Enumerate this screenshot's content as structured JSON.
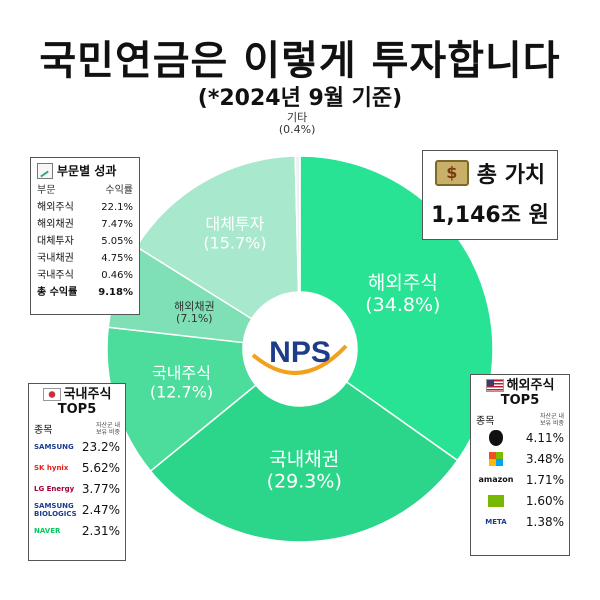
{
  "title": "국민연금은 이렇게 투자합니다",
  "subtitle": "(*2024년 9월 기준)",
  "center_logo": "NPS",
  "colors": {
    "foreign_stock": "#27e393",
    "domestic_bond": "#2bd68a",
    "domestic_stock": "#4cdc9c",
    "foreign_bond": "#7fdfb5",
    "alternative": "#a8e8cc",
    "other": "#f1f1f1",
    "nps_blue": "#1f3c8c",
    "nps_orange": "#f2a11c"
  },
  "chart_data": {
    "type": "pie",
    "donut": true,
    "slices": [
      {
        "name": "해외주식",
        "value": 34.8,
        "label": "(34.8%)"
      },
      {
        "name": "국내채권",
        "value": 29.3,
        "label": "(29.3%)"
      },
      {
        "name": "국내주식",
        "value": 12.7,
        "label": "(12.7%)"
      },
      {
        "name": "해외채권",
        "value": 7.1,
        "label": "(7.1%)"
      },
      {
        "name": "대체투자",
        "value": 15.7,
        "label": "(15.7%)"
      },
      {
        "name": "기타",
        "value": 0.4,
        "label": "(0.4%)"
      }
    ]
  },
  "performance_box": {
    "title": "부문별 성과",
    "col_sector": "부문",
    "col_return": "수익률",
    "rows": [
      {
        "sector": "해외주식",
        "return": "22.1%"
      },
      {
        "sector": "해외채권",
        "return": "7.47%"
      },
      {
        "sector": "대체투자",
        "return": "5.05%"
      },
      {
        "sector": "국내채권",
        "return": "4.75%"
      },
      {
        "sector": "국내주식",
        "return": "0.46%"
      }
    ],
    "total_label": "총 수익률",
    "total_value": "9.18%"
  },
  "total_box": {
    "label": "총 가치",
    "value": "1,146조 원",
    "icon": "money-bag-icon"
  },
  "domestic_top5": {
    "title_line1": "국내주식",
    "title_line2": "TOP5",
    "col_name": "종목",
    "col_weight_line1": "자산군 내",
    "col_weight_line2": "보유 비중",
    "rows": [
      {
        "logo": "SAMSUNG",
        "weight": "23.2%"
      },
      {
        "logo": "SK hynix",
        "weight": "5.62%"
      },
      {
        "logo": "LG Energy",
        "weight": "3.77%"
      },
      {
        "logo": "SAMSUNG BIOLOGICS",
        "weight": "2.47%"
      },
      {
        "logo": "NAVER",
        "weight": "2.31%"
      }
    ]
  },
  "foreign_top5": {
    "title_line1": "해외주식",
    "title_line2": "TOP5",
    "col_name": "종목",
    "col_weight_line1": "자산군 내",
    "col_weight_line2": "보유 비중",
    "rows": [
      {
        "icon": "apple-icon",
        "weight": "4.11%"
      },
      {
        "icon": "microsoft-icon",
        "weight": "3.48%"
      },
      {
        "icon": "amazon-icon",
        "text": "amazon",
        "weight": "1.71%"
      },
      {
        "icon": "nvidia-icon",
        "weight": "1.60%"
      },
      {
        "icon": "meta-icon",
        "text": "META",
        "weight": "1.38%"
      }
    ]
  }
}
